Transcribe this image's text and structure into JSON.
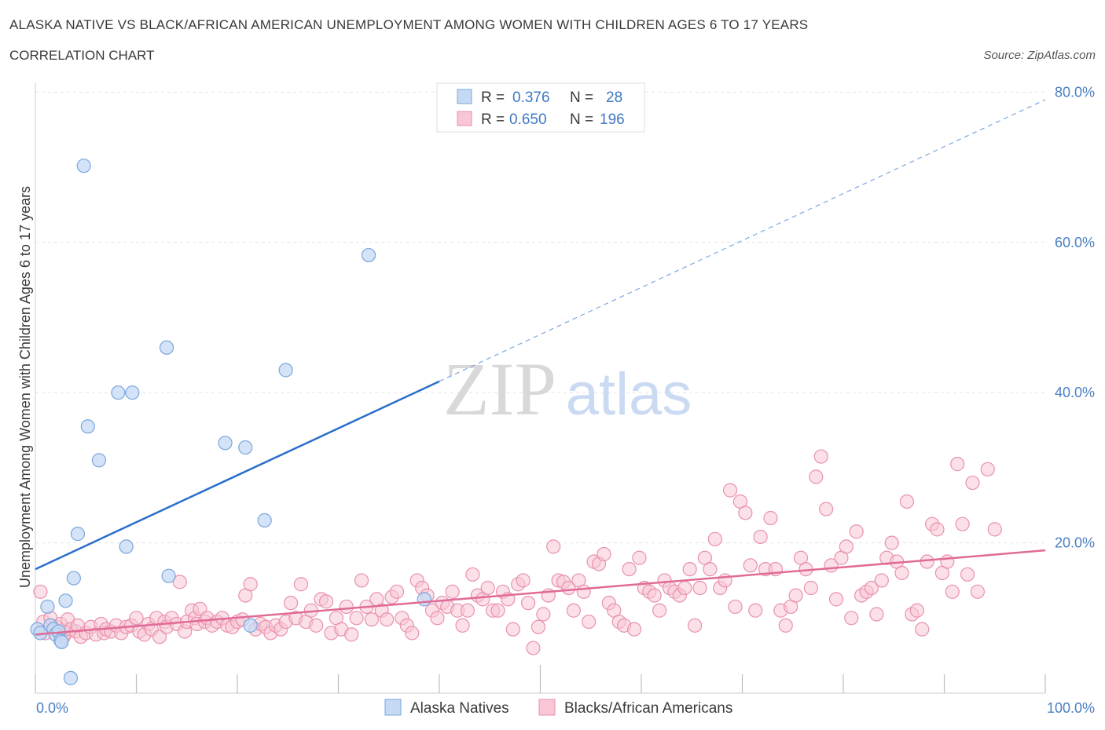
{
  "header": {
    "title": "ALASKA NATIVE VS BLACK/AFRICAN AMERICAN UNEMPLOYMENT AMONG WOMEN WITH CHILDREN AGES 6 TO 17 YEARS",
    "subtitle": "CORRELATION CHART",
    "source": "Source: ZipAtlas.com"
  },
  "watermark": {
    "zip": "ZIP",
    "atlas": "atlas"
  },
  "legend": {
    "r_label": "R =",
    "n_label": "N =",
    "rows": [
      {
        "r": "0.376",
        "n": "28"
      },
      {
        "r": "0.650",
        "n": "196"
      }
    ]
  },
  "colors": {
    "blue_fill": "#c5d9f4",
    "blue_stroke": "#7aa6dc",
    "blue_line": "#2a6fcb",
    "pink_fill": "#f8c6d4",
    "pink_stroke": "#e991ae",
    "pink_line": "#e06b96"
  },
  "chart_data": {
    "type": "scatter",
    "xlabel": "",
    "ylabel": "Unemployment Among Women with Children Ages 6 to 17 years",
    "xlim": [
      0,
      100
    ],
    "ylim": [
      0,
      80
    ],
    "x_tick_labels": [
      "0.0%",
      "100.0%"
    ],
    "y_ticks": [
      {
        "value": 20,
        "label": "20.0%"
      },
      {
        "value": 40,
        "label": "40.0%"
      },
      {
        "value": 60,
        "label": "60.0%"
      },
      {
        "value": 80,
        "label": "80.0%"
      }
    ],
    "legend_position": "top-center",
    "series": [
      {
        "name": "Alaska Natives",
        "r": 0.376,
        "n": 28,
        "trend": {
          "x0": 0,
          "y0": 16.5,
          "x1": 40,
          "y1": 41.5,
          "dashed_to_x": 100,
          "dashed_to_y": 79
        },
        "points": [
          [
            0.2,
            8.5
          ],
          [
            0.5,
            8.0
          ],
          [
            1.2,
            11.5
          ],
          [
            1.5,
            9.0
          ],
          [
            1.8,
            8.5
          ],
          [
            2.0,
            7.8
          ],
          [
            2.3,
            8.2
          ],
          [
            2.5,
            7.0
          ],
          [
            2.6,
            6.8
          ],
          [
            3.0,
            12.3
          ],
          [
            3.5,
            2.0
          ],
          [
            3.8,
            15.3
          ],
          [
            4.2,
            21.2
          ],
          [
            4.8,
            70.2
          ],
          [
            5.2,
            35.5
          ],
          [
            6.3,
            31.0
          ],
          [
            8.2,
            40.0
          ],
          [
            9.0,
            19.5
          ],
          [
            9.6,
            40.0
          ],
          [
            13.0,
            46.0
          ],
          [
            13.2,
            15.6
          ],
          [
            18.8,
            33.3
          ],
          [
            20.8,
            32.7
          ],
          [
            21.3,
            9.0
          ],
          [
            22.7,
            23.0
          ],
          [
            24.8,
            43.0
          ],
          [
            33.0,
            58.3
          ],
          [
            38.5,
            12.5
          ]
        ]
      },
      {
        "name": "Blacks/African Americans",
        "r": 0.65,
        "n": 196,
        "trend": {
          "x0": 0,
          "y0": 7.8,
          "x1": 100,
          "y1": 19.0
        },
        "points": [
          [
            0.5,
            13.5
          ],
          [
            0.8,
            9.5
          ],
          [
            1.0,
            8.0
          ],
          [
            1.5,
            10.0
          ],
          [
            2.0,
            8.8
          ],
          [
            2.5,
            9.2
          ],
          [
            2.8,
            7.5
          ],
          [
            3.0,
            8.0
          ],
          [
            3.2,
            9.8
          ],
          [
            3.5,
            8.5
          ],
          [
            4.0,
            8.2
          ],
          [
            4.2,
            9.0
          ],
          [
            4.5,
            7.5
          ],
          [
            5.0,
            8.0
          ],
          [
            5.5,
            8.8
          ],
          [
            6.0,
            7.8
          ],
          [
            6.5,
            9.2
          ],
          [
            6.8,
            8.0
          ],
          [
            7.0,
            8.5
          ],
          [
            7.5,
            8.2
          ],
          [
            8.0,
            9.0
          ],
          [
            8.5,
            8.0
          ],
          [
            9.0,
            8.8
          ],
          [
            9.5,
            9.0
          ],
          [
            10.0,
            10.0
          ],
          [
            10.3,
            8.2
          ],
          [
            10.8,
            7.8
          ],
          [
            11.2,
            9.2
          ],
          [
            11.5,
            8.5
          ],
          [
            12.0,
            10.0
          ],
          [
            12.3,
            7.5
          ],
          [
            12.8,
            9.5
          ],
          [
            13.0,
            8.8
          ],
          [
            13.5,
            10.0
          ],
          [
            14.0,
            9.2
          ],
          [
            14.3,
            14.8
          ],
          [
            14.8,
            8.2
          ],
          [
            15.0,
            9.5
          ],
          [
            15.5,
            11.0
          ],
          [
            15.8,
            10.0
          ],
          [
            16.0,
            9.2
          ],
          [
            16.3,
            11.2
          ],
          [
            16.8,
            9.5
          ],
          [
            17.0,
            10.0
          ],
          [
            17.5,
            9.0
          ],
          [
            18.0,
            9.5
          ],
          [
            18.5,
            10.0
          ],
          [
            19.0,
            9.0
          ],
          [
            19.5,
            8.8
          ],
          [
            20.0,
            9.5
          ],
          [
            20.5,
            9.8
          ],
          [
            20.8,
            13.0
          ],
          [
            21.3,
            14.5
          ],
          [
            21.8,
            8.5
          ],
          [
            22.3,
            9.2
          ],
          [
            22.8,
            8.8
          ],
          [
            23.3,
            8.0
          ],
          [
            23.8,
            9.0
          ],
          [
            24.3,
            8.5
          ],
          [
            24.8,
            9.5
          ],
          [
            25.3,
            12.0
          ],
          [
            25.8,
            10.0
          ],
          [
            26.3,
            14.5
          ],
          [
            26.8,
            9.5
          ],
          [
            27.3,
            11.0
          ],
          [
            27.8,
            9.0
          ],
          [
            28.3,
            12.5
          ],
          [
            28.8,
            12.2
          ],
          [
            29.3,
            8.0
          ],
          [
            29.8,
            10.0
          ],
          [
            30.3,
            8.5
          ],
          [
            30.8,
            11.5
          ],
          [
            31.3,
            7.8
          ],
          [
            31.8,
            10.0
          ],
          [
            32.3,
            15.0
          ],
          [
            32.8,
            11.5
          ],
          [
            33.3,
            9.8
          ],
          [
            33.8,
            12.5
          ],
          [
            34.3,
            11.0
          ],
          [
            34.8,
            9.8
          ],
          [
            35.3,
            12.8
          ],
          [
            35.8,
            13.5
          ],
          [
            36.3,
            10.0
          ],
          [
            36.8,
            9.0
          ],
          [
            37.3,
            8.0
          ],
          [
            37.8,
            15.0
          ],
          [
            38.3,
            14.0
          ],
          [
            38.8,
            13.0
          ],
          [
            39.3,
            11.0
          ],
          [
            39.8,
            10.0
          ],
          [
            40.3,
            12.0
          ],
          [
            40.8,
            11.5
          ],
          [
            41.3,
            13.5
          ],
          [
            41.8,
            11.0
          ],
          [
            42.3,
            9.0
          ],
          [
            42.8,
            11.0
          ],
          [
            43.3,
            15.8
          ],
          [
            43.8,
            13.0
          ],
          [
            44.3,
            12.5
          ],
          [
            44.8,
            14.0
          ],
          [
            45.3,
            11.0
          ],
          [
            45.8,
            11.0
          ],
          [
            46.3,
            13.5
          ],
          [
            46.8,
            12.5
          ],
          [
            47.3,
            8.5
          ],
          [
            47.8,
            14.5
          ],
          [
            48.3,
            15.0
          ],
          [
            48.8,
            12.0
          ],
          [
            49.3,
            6.0
          ],
          [
            49.8,
            8.8
          ],
          [
            50.3,
            10.5
          ],
          [
            50.8,
            13.0
          ],
          [
            51.3,
            19.5
          ],
          [
            51.8,
            15.0
          ],
          [
            52.3,
            14.8
          ],
          [
            52.8,
            14.0
          ],
          [
            53.3,
            11.0
          ],
          [
            53.8,
            15.0
          ],
          [
            54.3,
            13.5
          ],
          [
            54.8,
            9.5
          ],
          [
            55.3,
            17.5
          ],
          [
            55.8,
            17.2
          ],
          [
            56.3,
            18.5
          ],
          [
            56.8,
            12.0
          ],
          [
            57.3,
            11.0
          ],
          [
            57.8,
            9.5
          ],
          [
            58.3,
            9.0
          ],
          [
            58.8,
            16.5
          ],
          [
            59.3,
            8.5
          ],
          [
            59.8,
            18.0
          ],
          [
            60.3,
            14.0
          ],
          [
            60.8,
            13.5
          ],
          [
            61.3,
            13.0
          ],
          [
            61.8,
            11.0
          ],
          [
            62.3,
            15.0
          ],
          [
            62.8,
            14.0
          ],
          [
            63.3,
            13.5
          ],
          [
            63.8,
            13.0
          ],
          [
            64.3,
            14.0
          ],
          [
            64.8,
            16.5
          ],
          [
            65.3,
            9.0
          ],
          [
            65.8,
            14.0
          ],
          [
            66.3,
            18.0
          ],
          [
            66.8,
            16.5
          ],
          [
            67.3,
            20.5
          ],
          [
            67.8,
            14.0
          ],
          [
            68.3,
            15.0
          ],
          [
            68.8,
            27.0
          ],
          [
            69.3,
            11.5
          ],
          [
            69.8,
            25.5
          ],
          [
            70.3,
            24.0
          ],
          [
            70.8,
            17.0
          ],
          [
            71.3,
            11.0
          ],
          [
            71.8,
            20.8
          ],
          [
            72.3,
            16.5
          ],
          [
            72.8,
            23.3
          ],
          [
            73.3,
            16.5
          ],
          [
            73.8,
            11.0
          ],
          [
            74.3,
            9.0
          ],
          [
            74.8,
            11.5
          ],
          [
            75.3,
            13.0
          ],
          [
            75.8,
            18.0
          ],
          [
            76.3,
            16.5
          ],
          [
            76.8,
            14.0
          ],
          [
            77.3,
            28.8
          ],
          [
            77.8,
            31.5
          ],
          [
            78.3,
            24.5
          ],
          [
            78.8,
            17.0
          ],
          [
            79.3,
            12.5
          ],
          [
            79.8,
            18.0
          ],
          [
            80.3,
            19.5
          ],
          [
            80.8,
            10.0
          ],
          [
            81.3,
            21.5
          ],
          [
            81.8,
            13.0
          ],
          [
            82.3,
            13.5
          ],
          [
            82.8,
            14.0
          ],
          [
            83.3,
            10.5
          ],
          [
            83.8,
            15.0
          ],
          [
            84.3,
            18.0
          ],
          [
            84.8,
            20.0
          ],
          [
            85.3,
            17.5
          ],
          [
            85.8,
            16.0
          ],
          [
            86.3,
            25.5
          ],
          [
            86.8,
            10.5
          ],
          [
            87.3,
            11.0
          ],
          [
            87.8,
            8.5
          ],
          [
            88.3,
            17.5
          ],
          [
            88.8,
            22.5
          ],
          [
            89.3,
            21.8
          ],
          [
            89.8,
            16.0
          ],
          [
            90.3,
            17.5
          ],
          [
            90.8,
            13.5
          ],
          [
            91.3,
            30.5
          ],
          [
            91.8,
            22.5
          ],
          [
            92.3,
            15.8
          ],
          [
            92.8,
            28.0
          ],
          [
            93.3,
            13.5
          ],
          [
            94.3,
            29.8
          ],
          [
            95.0,
            21.8
          ]
        ]
      }
    ]
  }
}
